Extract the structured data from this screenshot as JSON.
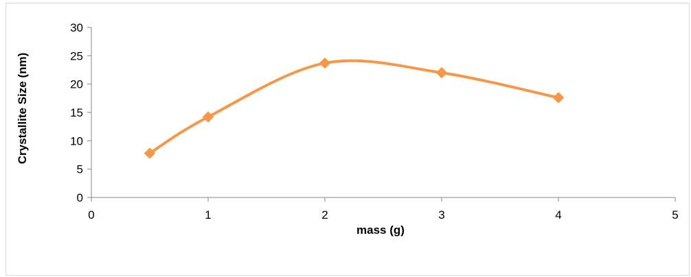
{
  "chart_data": {
    "type": "line",
    "smooth": true,
    "x": [
      0.5,
      1,
      2,
      3,
      4
    ],
    "series": [
      {
        "values": [
          7.8,
          14.2,
          23.7,
          22.0,
          17.6
        ],
        "color": "#f79646",
        "marker": "diamond"
      }
    ],
    "xlabel": "mass (g)",
    "ylabel": "Crystallite Size (nm)",
    "xlim": [
      0,
      5
    ],
    "ylim": [
      0,
      30
    ],
    "xticks": [
      "0",
      "1",
      "2",
      "3",
      "4",
      "5"
    ],
    "yticks": [
      "0",
      "5",
      "10",
      "15",
      "20",
      "25",
      "30"
    ],
    "grid": false,
    "legend": "none"
  }
}
